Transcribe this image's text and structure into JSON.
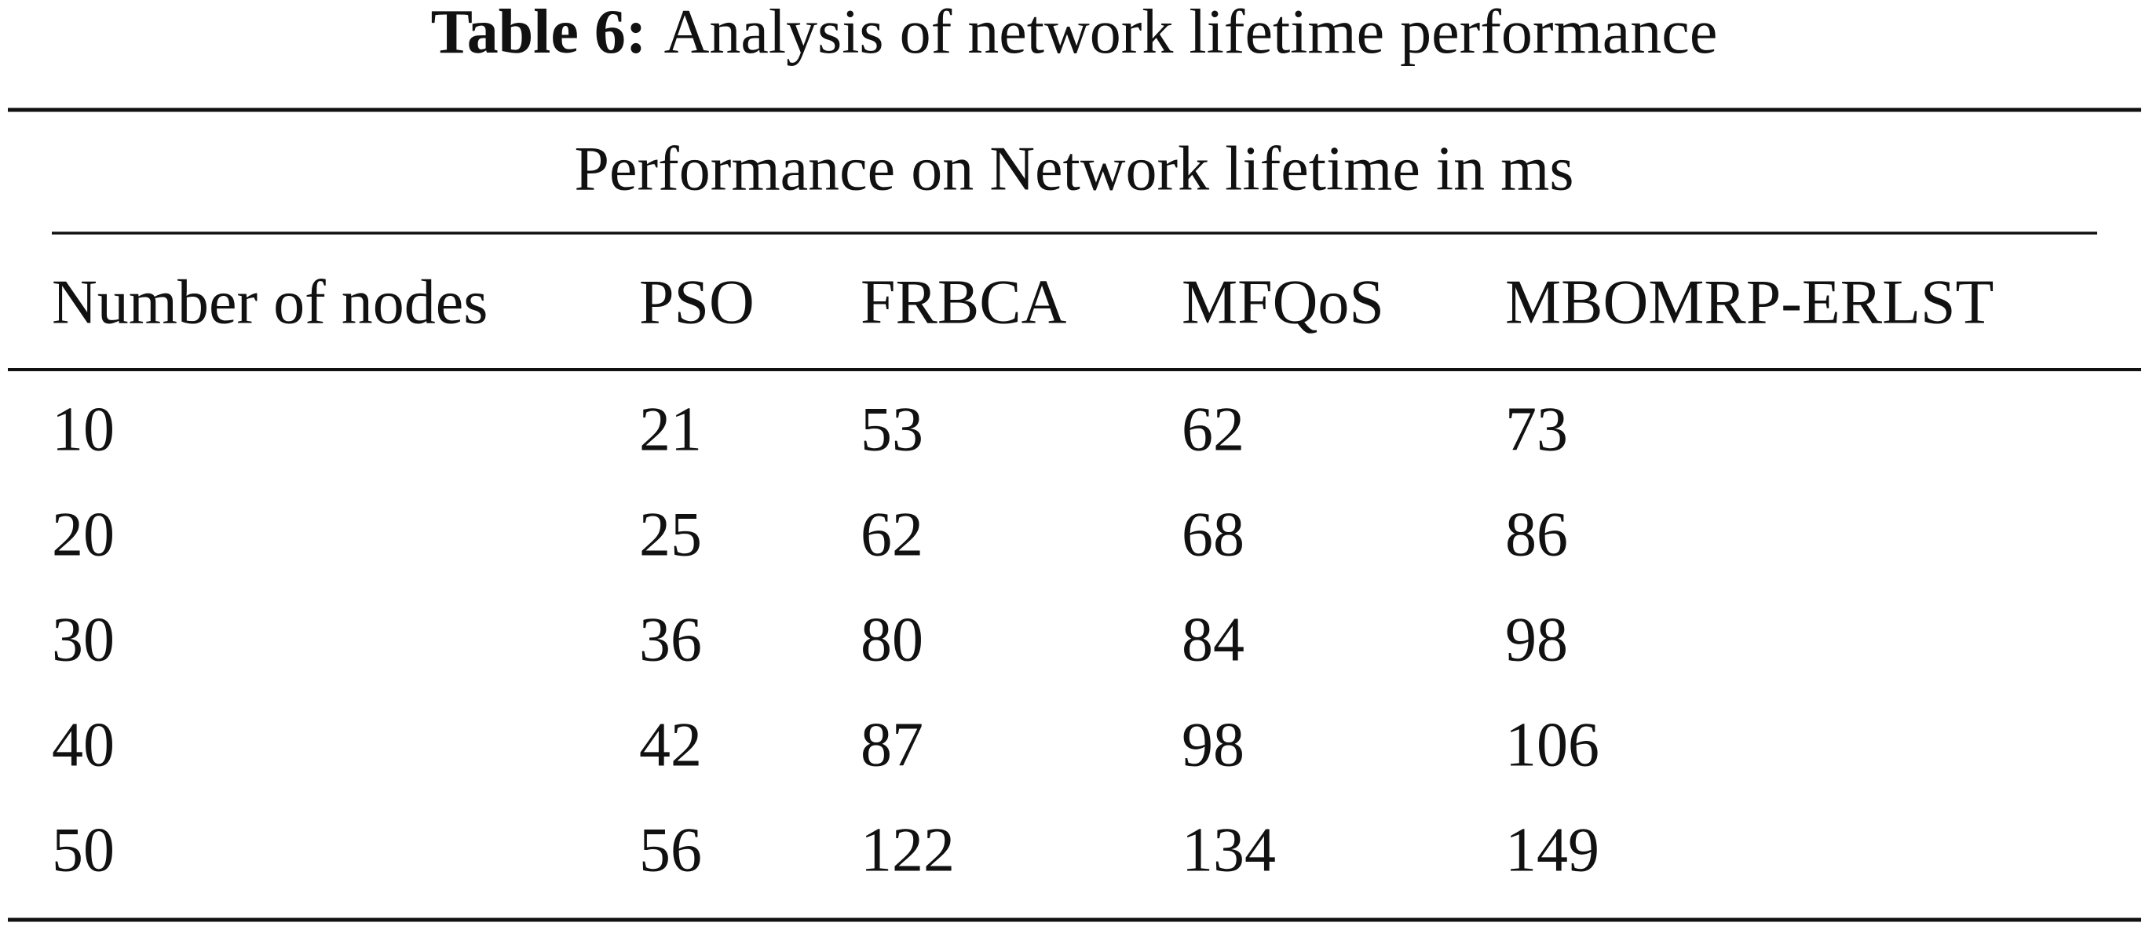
{
  "caption": {
    "label": "Table 6:",
    "text": "Analysis of network lifetime performance"
  },
  "table": {
    "group_header": "Performance on Network lifetime in ms",
    "columns": [
      "Number of nodes",
      "PSO",
      "FRBCA",
      "MFQoS",
      "MBOMRP-ERLST"
    ],
    "rows": [
      [
        10,
        21,
        53,
        62,
        73
      ],
      [
        20,
        25,
        62,
        68,
        86
      ],
      [
        30,
        36,
        80,
        84,
        98
      ],
      [
        40,
        42,
        87,
        98,
        106
      ],
      [
        50,
        56,
        122,
        134,
        149
      ]
    ]
  }
}
